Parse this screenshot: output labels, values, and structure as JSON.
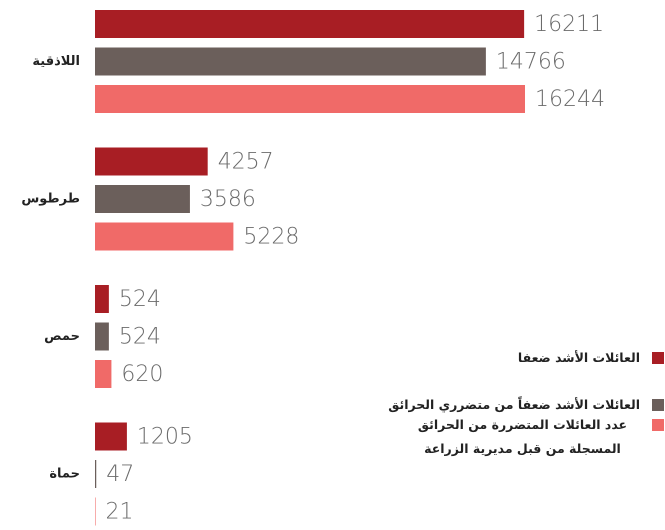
{
  "chart_data": {
    "type": "bar",
    "orientation": "horizontal",
    "categories": [
      "اللاذقية",
      "طرطوس",
      "حمص",
      "حماة"
    ],
    "series": [
      {
        "name": "العائلات الأشد ضعفا",
        "color": "#a81e24",
        "values": [
          16211,
          4257,
          524,
          1205
        ]
      },
      {
        "name": "العائلات الأشد ضعفاً من متضرري الحرائق",
        "color": "#6b5f5b",
        "values": [
          14766,
          3586,
          524,
          47
        ]
      },
      {
        "name": "عدد العائلات المتضررة من الحرائق المسجلة من قبل مديرية الزراعة",
        "color": "#f06a68",
        "values": [
          16244,
          5228,
          620,
          21
        ]
      }
    ],
    "legend": "lower right"
  }
}
